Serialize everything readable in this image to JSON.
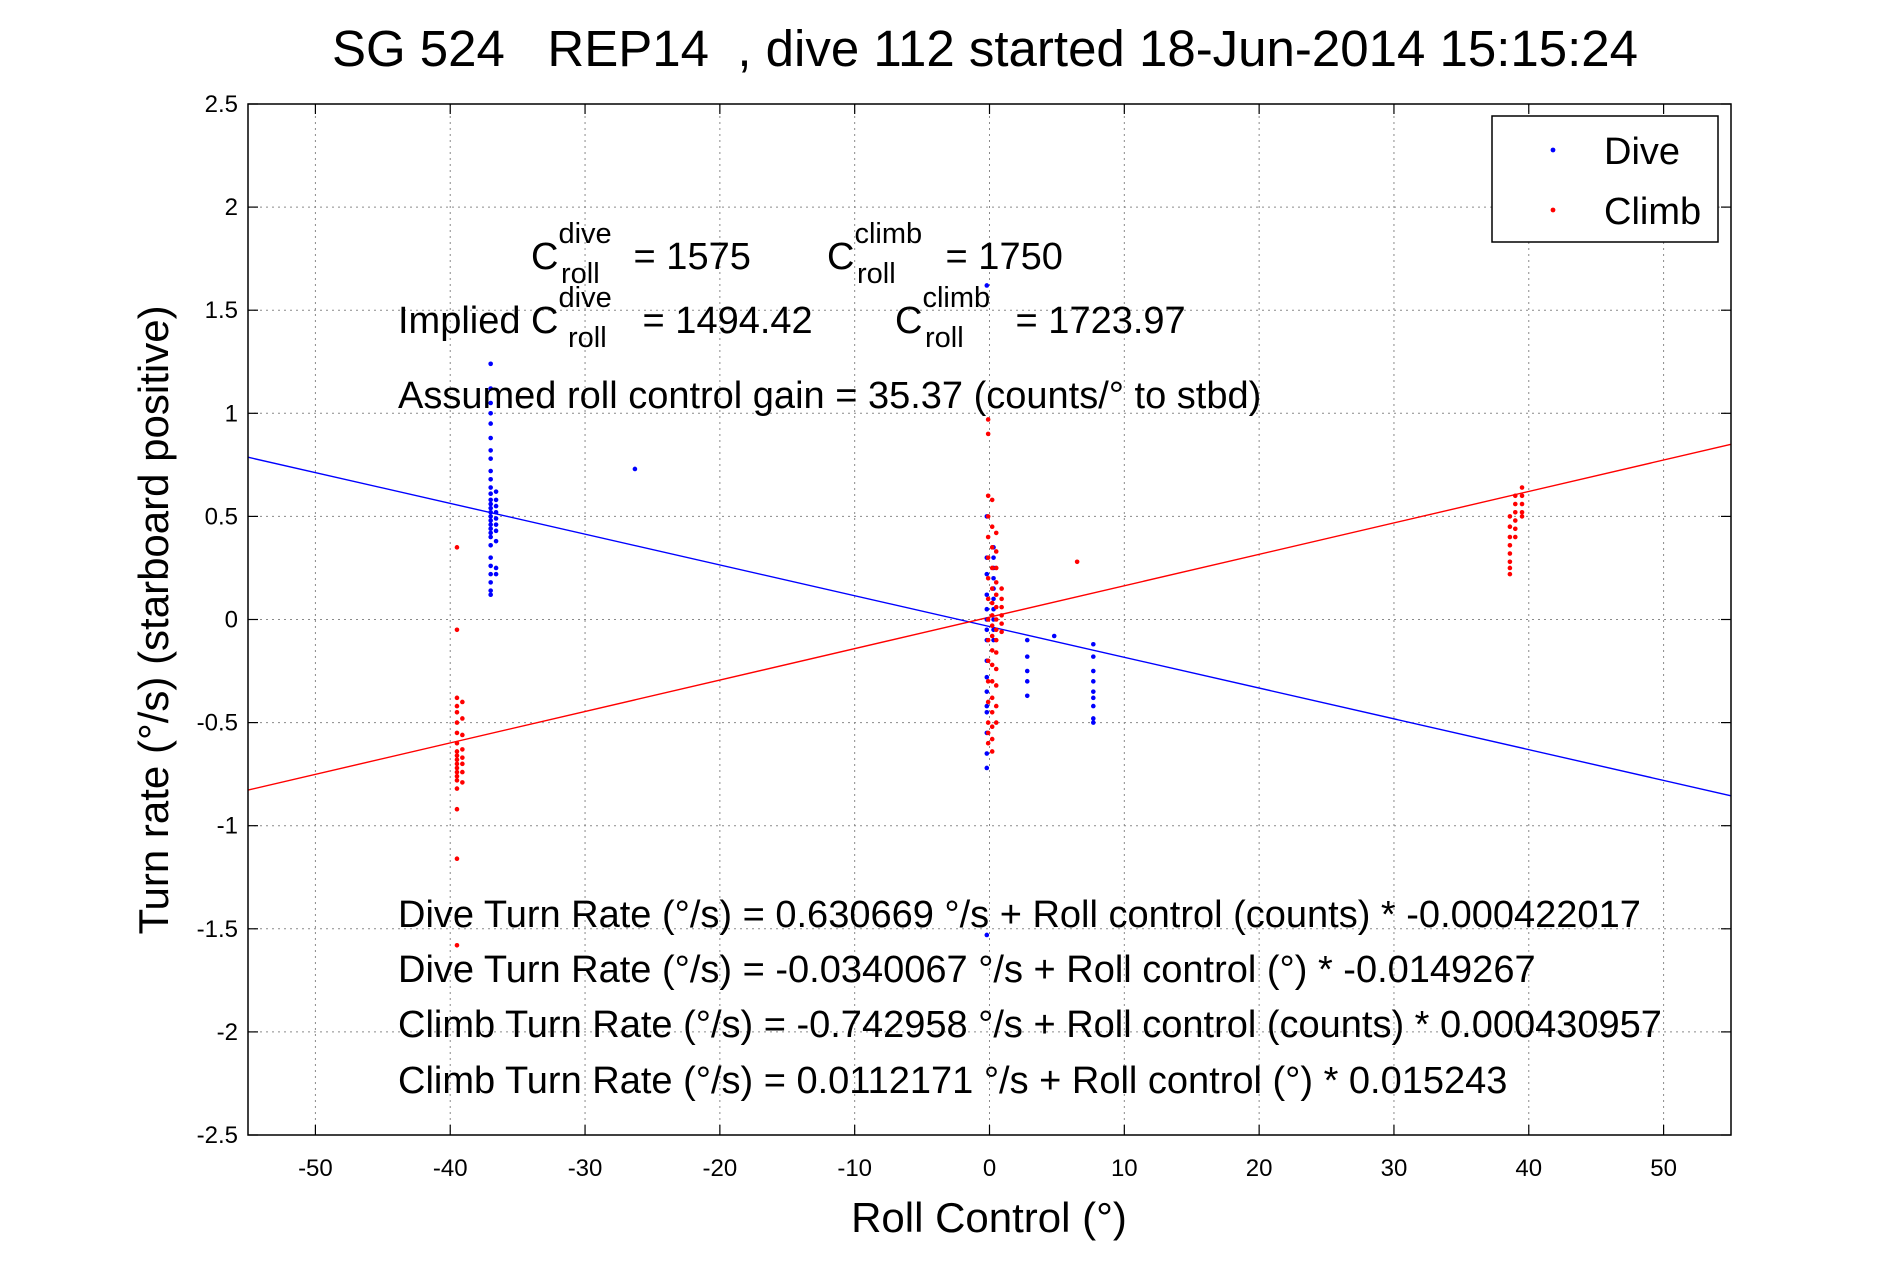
{
  "chart_data": {
    "type": "scatter",
    "title": "SG 524   REP14  , dive 112 started 18-Jun-2014 15:15:24",
    "xlabel": "Roll Control (°)",
    "ylabel": "Turn rate (°/s)  (starboard positive)",
    "xlim": [
      -55,
      55
    ],
    "ylim": [
      -2.5,
      2.5
    ],
    "xticks": [
      -50,
      -40,
      -30,
      -20,
      -10,
      0,
      10,
      20,
      30,
      40,
      50
    ],
    "yticks": [
      2.5,
      2,
      1.5,
      1,
      0.5,
      0,
      -0.5,
      -1,
      -1.5,
      -2,
      -2.5
    ],
    "grid": true,
    "legend_position": "top-right",
    "series": [
      {
        "name": "Dive",
        "color": "#0000ff",
        "clusters": [
          {
            "x": -37.0,
            "y": [
              1.24,
              1.12,
              1.05,
              1.0,
              0.95,
              0.88,
              0.82,
              0.78,
              0.72,
              0.68,
              0.64,
              0.61,
              0.58,
              0.56,
              0.54,
              0.52,
              0.5,
              0.48,
              0.46,
              0.44,
              0.42,
              0.4,
              0.36,
              0.3,
              0.26,
              0.22,
              0.18,
              0.14,
              0.12
            ]
          },
          {
            "x": -36.6,
            "y": [
              0.62,
              0.58,
              0.55,
              0.52,
              0.49,
              0.46,
              0.43,
              0.38,
              0.25,
              0.22
            ]
          },
          {
            "x": -26.3,
            "y": [
              0.73
            ]
          },
          {
            "x": -0.2,
            "y": [
              1.62,
              0.5,
              0.3,
              0.22,
              0.12,
              0.05,
              0.0,
              -0.05,
              -0.1,
              -0.2,
              -0.28,
              -0.35,
              -0.42,
              -0.45,
              -0.55,
              -0.65,
              -0.72,
              -1.53
            ]
          },
          {
            "x": 0.3,
            "y": [
              0.35,
              0.3,
              0.25,
              0.2,
              0.15,
              0.1,
              0.05,
              0.0,
              -0.05,
              -0.1
            ]
          },
          {
            "x": 2.8,
            "y": [
              -0.1,
              -0.18,
              -0.25,
              -0.3,
              -0.37
            ]
          },
          {
            "x": 4.8,
            "y": [
              -0.08
            ]
          },
          {
            "x": 7.7,
            "y": [
              -0.12,
              -0.18,
              -0.25,
              -0.3,
              -0.35,
              -0.38,
              -0.42,
              -0.48,
              -0.5
            ]
          }
        ],
        "fit": {
          "intercept": -0.0340067,
          "slope": -0.0149267
        }
      },
      {
        "name": "Climb",
        "color": "#ff0000",
        "clusters": [
          {
            "x": -39.5,
            "y": [
              0.35,
              -0.05,
              -0.38,
              -0.42,
              -0.45,
              -0.5,
              -0.55,
              -0.6,
              -0.64,
              -0.66,
              -0.68,
              -0.7,
              -0.72,
              -0.74,
              -0.76,
              -0.78,
              -0.82,
              -0.92,
              -1.16,
              -1.58
            ]
          },
          {
            "x": -39.1,
            "y": [
              -0.4,
              -0.48,
              -0.56,
              -0.63,
              -0.67,
              -0.7,
              -0.74,
              -0.79
            ]
          },
          {
            "x": -0.1,
            "y": [
              0.97,
              0.9,
              0.6,
              0.5,
              0.4,
              0.3,
              0.2,
              0.1,
              0.0,
              -0.1,
              -0.2,
              -0.3,
              -0.4,
              -0.5,
              -0.55,
              -0.6
            ]
          },
          {
            "x": 0.2,
            "y": [
              0.58,
              0.45,
              0.35,
              0.25,
              0.15,
              0.08,
              0.02,
              -0.03,
              -0.08,
              -0.15,
              -0.22,
              -0.3,
              -0.38,
              -0.45,
              -0.52,
              -0.58,
              -0.64
            ]
          },
          {
            "x": 0.5,
            "y": [
              0.42,
              0.33,
              0.25,
              0.18,
              0.12,
              0.06,
              0.0,
              -0.05,
              -0.1,
              -0.16,
              -0.24,
              -0.32,
              -0.42,
              -0.5
            ]
          },
          {
            "x": 0.9,
            "y": [
              0.15,
              0.1,
              0.06,
              0.02,
              -0.02,
              -0.06
            ]
          },
          {
            "x": 6.5,
            "y": [
              0.28
            ]
          },
          {
            "x": 38.6,
            "y": [
              0.5,
              0.45,
              0.4,
              0.36,
              0.32,
              0.28,
              0.25,
              0.22
            ]
          },
          {
            "x": 39.0,
            "y": [
              0.6,
              0.56,
              0.52,
              0.48,
              0.44,
              0.4
            ]
          },
          {
            "x": 39.5,
            "y": [
              0.64,
              0.6,
              0.56,
              0.52,
              0.5
            ]
          }
        ],
        "fit": {
          "intercept": 0.0112171,
          "slope": 0.015243
        }
      }
    ],
    "annotations": {
      "c_dive": {
        "sym": "C",
        "sup": "dive",
        "sub": "roll",
        "rest": " = 1575"
      },
      "c_climb": {
        "sym": "C",
        "sup": "climb",
        "sub": "roll",
        "rest": " = 1750"
      },
      "implied_prefix": "Implied C",
      "implied_dive": {
        "sup": "dive",
        "sub": "roll",
        "rest": " = 1494.42"
      },
      "implied_climb": {
        "sym": "C",
        "sup": "climb",
        "sub": "roll",
        "rest": " = 1723.97"
      },
      "gain": "Assumed roll control gain = 35.37 (counts/° to stbd)",
      "eq1": "Dive Turn Rate (°/s) = 0.630669 °/s + Roll control (counts) * -0.000422017",
      "eq2": "Dive Turn Rate (°/s) = -0.0340067 °/s + Roll control (°) * -0.0149267",
      "eq3": "Climb Turn Rate (°/s) = -0.742958 °/s + Roll control (counts) * 0.000430957",
      "eq4": "Climb Turn Rate (°/s) = 0.0112171 °/s + Roll control (°) * 0.015243"
    }
  }
}
